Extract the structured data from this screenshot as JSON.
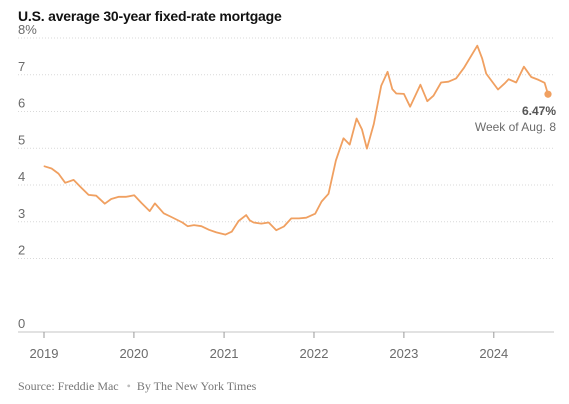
{
  "title": "U.S. average 30-year fixed-rate mortgage",
  "footer": {
    "source": "Source: Freddie Mac",
    "credit": "By The New York Times"
  },
  "colors": {
    "line": "#f0a061",
    "last_point": "#f0a061"
  },
  "chart_data": {
    "type": "line",
    "title": "U.S. average 30-year fixed-rate mortgage",
    "xlabel": "",
    "ylabel": "",
    "xlim": [
      "2019-01-01",
      "2024-08-08"
    ],
    "ylim": [
      0,
      8
    ],
    "y_ticks": [
      0,
      2,
      3,
      4,
      5,
      6,
      7,
      8
    ],
    "y_tick_labels": [
      "0",
      "2",
      "3",
      "4",
      "5",
      "6",
      "7",
      "8%"
    ],
    "x_ticks": [
      "2019",
      "2020",
      "2021",
      "2022",
      "2023",
      "2024"
    ],
    "grid": true,
    "series": [
      {
        "points": [
          [
            "2019-01-03",
            4.51
          ],
          [
            "2019-02-01",
            4.45
          ],
          [
            "2019-03-01",
            4.31
          ],
          [
            "2019-03-28",
            4.06
          ],
          [
            "2019-05-01",
            4.14
          ],
          [
            "2019-06-01",
            3.93
          ],
          [
            "2019-07-01",
            3.73
          ],
          [
            "2019-08-01",
            3.71
          ],
          [
            "2019-09-05",
            3.49
          ],
          [
            "2019-10-01",
            3.62
          ],
          [
            "2019-11-01",
            3.68
          ],
          [
            "2019-12-01",
            3.68
          ],
          [
            "2020-01-02",
            3.72
          ],
          [
            "2020-02-01",
            3.51
          ],
          [
            "2020-03-05",
            3.29
          ],
          [
            "2020-03-26",
            3.5
          ],
          [
            "2020-05-01",
            3.23
          ],
          [
            "2020-06-01",
            3.13
          ],
          [
            "2020-07-16",
            2.98
          ],
          [
            "2020-08-06",
            2.88
          ],
          [
            "2020-09-01",
            2.91
          ],
          [
            "2020-10-01",
            2.88
          ],
          [
            "2020-11-01",
            2.78
          ],
          [
            "2020-12-01",
            2.71
          ],
          [
            "2021-01-07",
            2.65
          ],
          [
            "2021-02-01",
            2.73
          ],
          [
            "2021-03-01",
            3.02
          ],
          [
            "2021-04-01",
            3.18
          ],
          [
            "2021-04-15",
            3.04
          ],
          [
            "2021-05-01",
            2.98
          ],
          [
            "2021-06-01",
            2.95
          ],
          [
            "2021-07-01",
            2.98
          ],
          [
            "2021-08-01",
            2.77
          ],
          [
            "2021-09-01",
            2.87
          ],
          [
            "2021-10-01",
            3.09
          ],
          [
            "2021-11-01",
            3.09
          ],
          [
            "2021-12-01",
            3.11
          ],
          [
            "2022-01-06",
            3.22
          ],
          [
            "2022-02-01",
            3.55
          ],
          [
            "2022-03-01",
            3.76
          ],
          [
            "2022-03-31",
            4.67
          ],
          [
            "2022-05-01",
            5.27
          ],
          [
            "2022-05-26",
            5.1
          ],
          [
            "2022-06-23",
            5.81
          ],
          [
            "2022-07-15",
            5.51
          ],
          [
            "2022-08-04",
            4.99
          ],
          [
            "2022-09-01",
            5.66
          ],
          [
            "2022-10-01",
            6.7
          ],
          [
            "2022-10-27",
            7.08
          ],
          [
            "2022-11-15",
            6.61
          ],
          [
            "2022-12-01",
            6.49
          ],
          [
            "2023-01-01",
            6.48
          ],
          [
            "2023-01-26",
            6.13
          ],
          [
            "2023-03-09",
            6.73
          ],
          [
            "2023-04-06",
            6.28
          ],
          [
            "2023-05-01",
            6.43
          ],
          [
            "2023-06-01",
            6.79
          ],
          [
            "2023-07-01",
            6.81
          ],
          [
            "2023-08-01",
            6.9
          ],
          [
            "2023-09-01",
            7.18
          ],
          [
            "2023-10-26",
            7.79
          ],
          [
            "2023-11-15",
            7.44
          ],
          [
            "2023-12-01",
            7.03
          ],
          [
            "2024-01-18",
            6.6
          ],
          [
            "2024-02-15",
            6.77
          ],
          [
            "2024-03-01",
            6.88
          ],
          [
            "2024-04-01",
            6.79
          ],
          [
            "2024-05-02",
            7.22
          ],
          [
            "2024-06-01",
            6.94
          ],
          [
            "2024-07-01",
            6.86
          ],
          [
            "2024-07-25",
            6.78
          ],
          [
            "2024-08-08",
            6.47
          ]
        ]
      }
    ],
    "annotations": [
      {
        "label": "6.47%",
        "note": "Week of Aug. 8",
        "x": "2024-08-08",
        "y": 6.47
      }
    ]
  }
}
